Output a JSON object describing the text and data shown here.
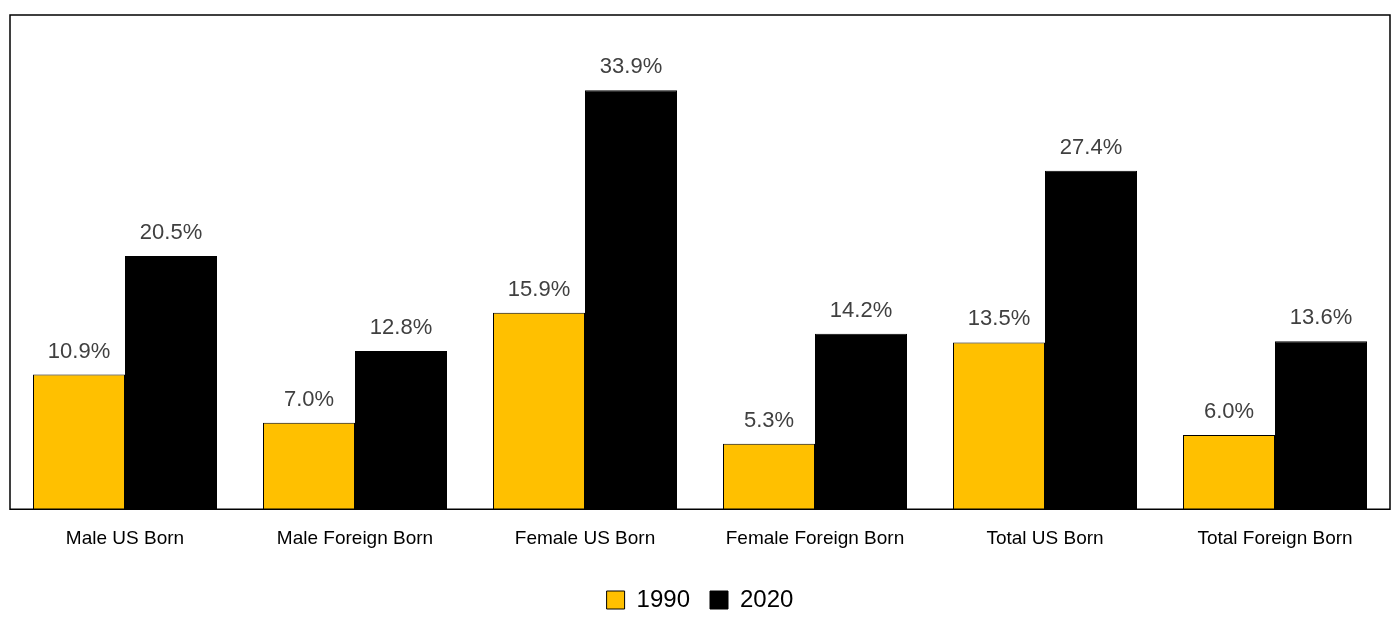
{
  "chart_data": {
    "type": "bar",
    "categories": [
      "Male US Born",
      "Male Foreign Born",
      "Female US Born",
      "Female Foreign Born",
      "Total US Born",
      "Total Foreign Born"
    ],
    "series": [
      {
        "name": "1990",
        "color": "#ffc000",
        "values": [
          10.9,
          7.0,
          15.9,
          5.3,
          13.5,
          6.0
        ],
        "value_labels": [
          "10.9%",
          "7.0%",
          "15.9%",
          "5.3%",
          "13.5%",
          "6.0%"
        ]
      },
      {
        "name": "2020",
        "color": "#000000",
        "values": [
          20.5,
          12.8,
          33.9,
          14.2,
          27.4,
          13.6
        ],
        "value_labels": [
          "20.5%",
          "12.8%",
          "33.9%",
          "14.2%",
          "27.4%",
          "13.6%"
        ]
      }
    ],
    "legend": "bottom",
    "grid": false
  }
}
